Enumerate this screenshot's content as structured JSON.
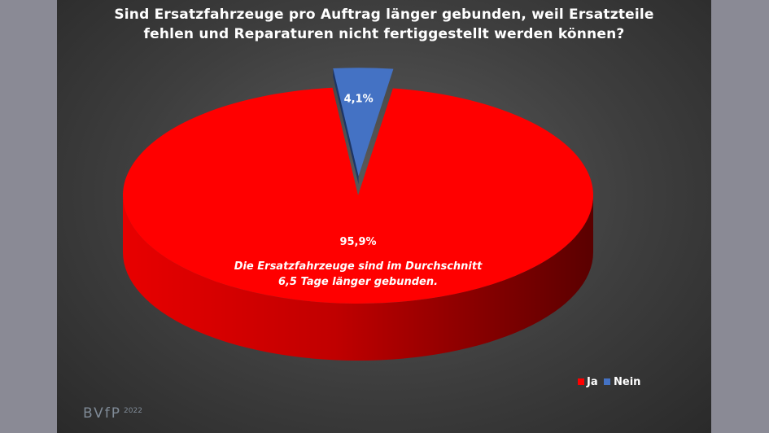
{
  "title_lines": [
    "Sind Ersatzfahrzeuge pro Auftrag länger gebunden, weil Ersatzteile",
    "fehlen und Reparaturen nicht fertiggestellt werden können?"
  ],
  "annotation_lines": [
    "Die Ersatzfahrzeuge sind im Durchschnitt",
    "6,5 Tage länger gebunden."
  ],
  "logo": {
    "brand": "BVfP",
    "year": "2022"
  },
  "chart_data": {
    "type": "pie",
    "style": "3d",
    "title": "Sind Ersatzfahrzeuge pro Auftrag länger gebunden, weil Ersatzteile fehlen und Reparaturen nicht fertiggestellt werden können?",
    "categories": [
      "Ja",
      "Nein"
    ],
    "values": [
      95.9,
      4.1
    ],
    "data_labels": [
      "95,9%",
      "4,1%"
    ],
    "colors": [
      "#ff0000",
      "#4472c4"
    ],
    "exploded": [
      "Nein"
    ],
    "legend_position": "bottom-right"
  }
}
